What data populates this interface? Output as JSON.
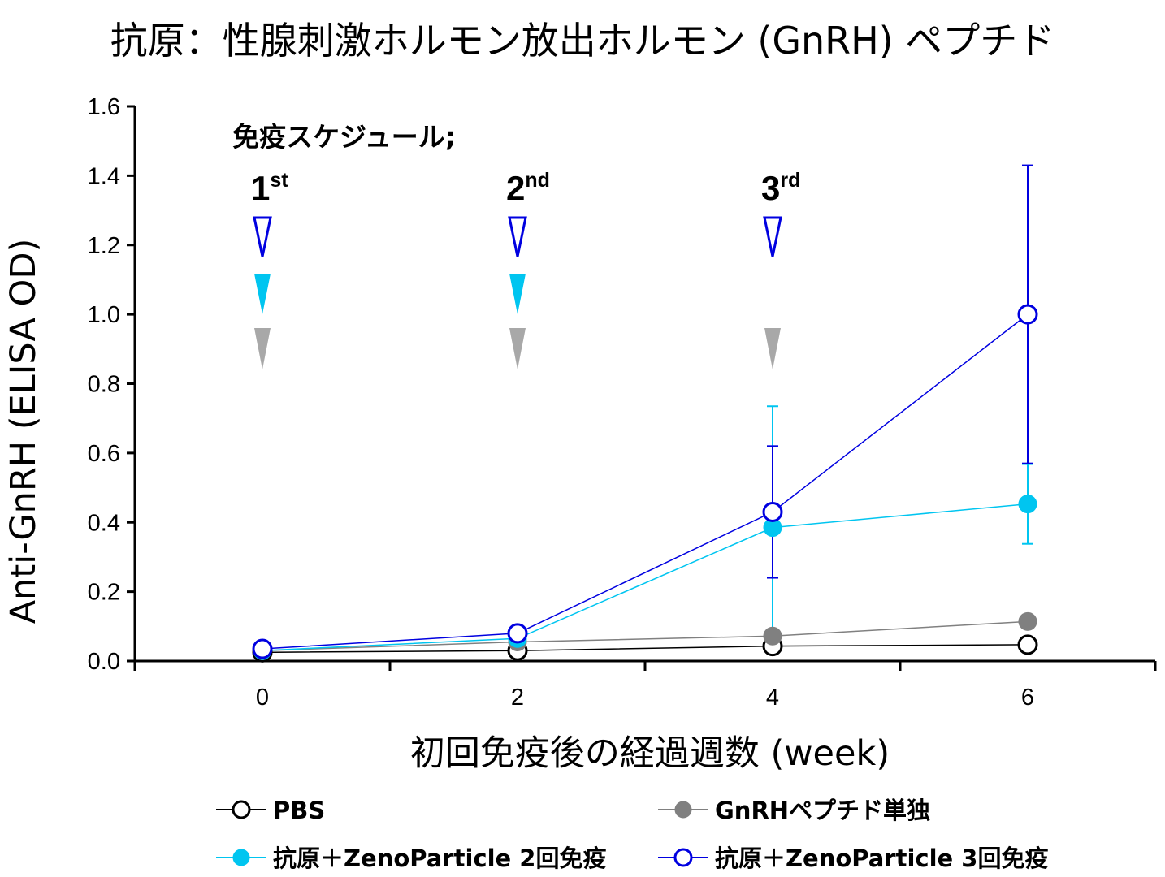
{
  "title": "抗原：性腺刺激ホルモン放出ホルモン (GnRH) ペプチド",
  "schedule": {
    "title": "免疫スケジュール;",
    "doses": [
      {
        "num": "1",
        "sup": "st",
        "week": 0,
        "groups": [
          3,
          2,
          1
        ]
      },
      {
        "num": "2",
        "sup": "nd",
        "week": 2,
        "groups": [
          3,
          2,
          1
        ]
      },
      {
        "num": "3",
        "sup": "rd",
        "week": 4,
        "groups": [
          3,
          1
        ]
      }
    ]
  },
  "chart_data": {
    "type": "line",
    "xlabel": "初回免疫後の経過週数 (week)",
    "ylabel": "Anti-GnRH (ELISA OD)",
    "xlim": [
      -1,
      7
    ],
    "ylim": [
      0,
      1.6
    ],
    "x_ticks": [
      0,
      2,
      4,
      6
    ],
    "x_tick_labels": [
      "0",
      "2",
      "4",
      "6"
    ],
    "y_ticks": [
      0,
      0.2,
      0.4,
      0.6,
      0.8,
      1.0,
      1.2,
      1.4,
      1.6
    ],
    "y_tick_labels": [
      "0.0",
      "0.2",
      "0.4",
      "0.6",
      "0.8",
      "1.0",
      "1.2",
      "1.4",
      "1.6"
    ],
    "grid": false,
    "legend_position": "bottom",
    "series": [
      {
        "name": "PBS",
        "color": "#000000",
        "marker": "open-circle",
        "x": [
          0,
          2,
          4,
          6
        ],
        "y": [
          0.025,
          0.03,
          0.043,
          0.047
        ],
        "err": [
          0,
          0,
          0,
          0
        ]
      },
      {
        "name": "GnRHペプチド単独",
        "color": "#808080",
        "marker": "filled-circle",
        "x": [
          0,
          2,
          4,
          6
        ],
        "y": [
          0.03,
          0.055,
          0.072,
          0.114
        ],
        "err": [
          0,
          0,
          0,
          0
        ]
      },
      {
        "name": "抗原＋ZenoParticle 2回免疫",
        "color": "#00c5f0",
        "marker": "filled-circle",
        "x": [
          0,
          2,
          4,
          6
        ],
        "y": [
          0.03,
          0.065,
          0.385,
          0.453
        ],
        "err": [
          0,
          0,
          0.35,
          0.115
        ]
      },
      {
        "name": "抗原＋ZenoParticle 3回免疫",
        "color": "#0000e0",
        "marker": "open-circle",
        "x": [
          0,
          2,
          4,
          6
        ],
        "y": [
          0.035,
          0.08,
          0.43,
          1.0
        ],
        "err": [
          0,
          0,
          0.19,
          0.43
        ]
      }
    ]
  }
}
